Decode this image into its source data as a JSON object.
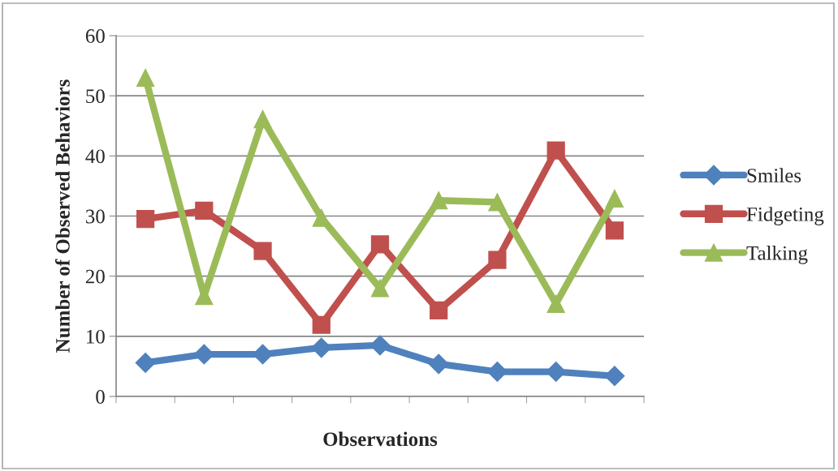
{
  "chart_data": {
    "type": "line",
    "xlabel": "Observations",
    "ylabel": "Number of Observed Behaviors",
    "categories": [
      null,
      null,
      null,
      null,
      null,
      null,
      null,
      null,
      null
    ],
    "series": [
      {
        "name": "Smiles",
        "color": "#4f81bd",
        "marker": "diamond",
        "values": [
          5.6,
          7.0,
          7.0,
          8.1,
          8.5,
          5.4,
          4.1,
          4.1,
          3.4
        ]
      },
      {
        "name": "Fidgeting",
        "color": "#c0504d",
        "marker": "square",
        "values": [
          29.5,
          30.9,
          24.2,
          11.9,
          25.3,
          14.3,
          22.7,
          40.9,
          27.6
        ]
      },
      {
        "name": "Talking",
        "color": "#9bbb59",
        "marker": "triangle",
        "values": [
          53,
          16.7,
          46.1,
          29.7,
          18.0,
          32.6,
          32.3,
          15.4,
          32.9
        ]
      }
    ],
    "ylim": [
      0,
      60
    ],
    "yticks": [
      0,
      10,
      20,
      30,
      40,
      50,
      60
    ],
    "grid": "y",
    "legend": "right",
    "line_style": "solid"
  }
}
